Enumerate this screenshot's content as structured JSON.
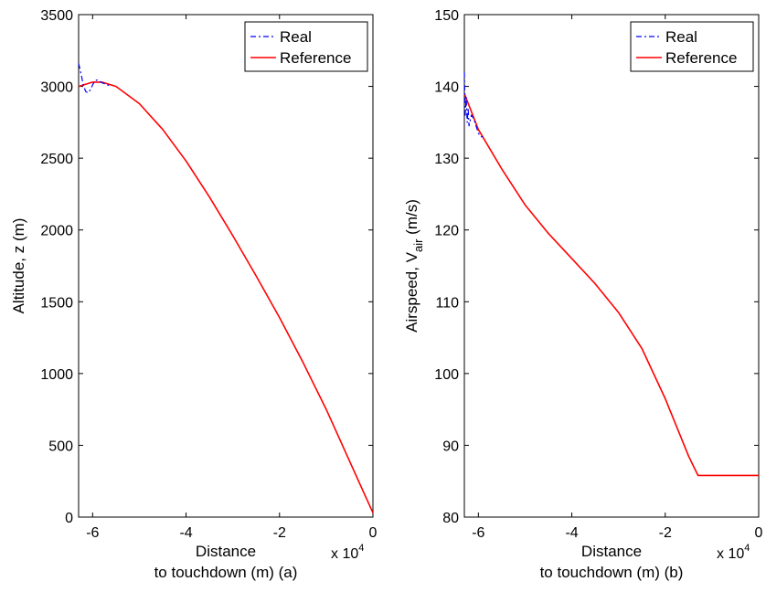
{
  "chart_data": [
    {
      "type": "line",
      "panel": "(a)",
      "xlabel_line1": "Distance",
      "xlabel_line2": "to touchdown (m) (a)",
      "ylabel": "Altitude, z (m)",
      "x_exponent_label": "x 10",
      "x_exponent_power": "4",
      "xlim": [
        -6.3,
        0
      ],
      "ylim": [
        0,
        3500
      ],
      "x_scale_note": "x values in units of 10^4 m",
      "xticks": [
        -6,
        -4,
        -2,
        0
      ],
      "xtick_labels": [
        "-6",
        "-4",
        "-2",
        "0"
      ],
      "yticks": [
        0,
        500,
        1000,
        1500,
        2000,
        2500,
        3000,
        3500
      ],
      "ytick_labels": [
        "0",
        "500",
        "1000",
        "1500",
        "2000",
        "2500",
        "3000",
        "3500"
      ],
      "legend_position": "top-right",
      "series": [
        {
          "name": "Real",
          "color": "#0000ff",
          "style": "dash-dot",
          "x": [
            -6.3,
            -6.25,
            -6.2,
            -6.15,
            -6.1,
            -6.05,
            -6.0,
            -5.95,
            -5.9,
            -5.8,
            -5.6
          ],
          "y": [
            3160,
            3090,
            3010,
            2965,
            2955,
            2975,
            3010,
            3040,
            3045,
            3025,
            3000
          ]
        },
        {
          "name": "Reference",
          "color": "#ff0000",
          "style": "solid",
          "x": [
            -6.3,
            -6.0,
            -5.8,
            -5.5,
            -5.0,
            -4.5,
            -4.0,
            -3.5,
            -3.0,
            -2.5,
            -2.0,
            -1.5,
            -1.0,
            -0.5,
            0.0
          ],
          "y": [
            3000,
            3030,
            3030,
            3000,
            2880,
            2700,
            2480,
            2230,
            1960,
            1680,
            1390,
            1080,
            750,
            390,
            30
          ]
        }
      ]
    },
    {
      "type": "line",
      "panel": "(b)",
      "xlabel_line1": "Distance",
      "xlabel_line2": "to touchdown (m) (b)",
      "ylabel_main": "Airspeed, V",
      "ylabel_sub": "air",
      "ylabel_unit": " (m/s)",
      "x_exponent_label": "x 10",
      "x_exponent_power": "4",
      "xlim": [
        -6.3,
        0
      ],
      "ylim": [
        80,
        150
      ],
      "x_scale_note": "x values in units of 10^4 m",
      "xticks": [
        -6,
        -4,
        -2,
        0
      ],
      "xtick_labels": [
        "-6",
        "-4",
        "-2",
        "0"
      ],
      "yticks": [
        80,
        90,
        100,
        110,
        120,
        130,
        140,
        150
      ],
      "ytick_labels": [
        "80",
        "90",
        "100",
        "110",
        "120",
        "130",
        "140",
        "150"
      ],
      "legend_position": "top-right",
      "series": [
        {
          "name": "Real",
          "color": "#0000ff",
          "style": "dash-dot",
          "x": [
            -6.3,
            -6.28,
            -6.26,
            -6.24,
            -6.22,
            -6.2,
            -6.15,
            -6.1,
            -6.05,
            -6.0,
            -5.95,
            -5.9
          ],
          "y": [
            142,
            136,
            138.5,
            135,
            137,
            134.5,
            136,
            135.5,
            134.5,
            133.5,
            133,
            133
          ]
        },
        {
          "name": "Reference",
          "color": "#ff0000",
          "style": "solid",
          "x": [
            -6.3,
            -6.0,
            -5.5,
            -5.0,
            -4.5,
            -4.0,
            -3.5,
            -3.0,
            -2.5,
            -2.0,
            -1.5,
            -1.3,
            -1.0,
            -0.5,
            0.0
          ],
          "y": [
            139,
            134,
            128.5,
            123.5,
            119.5,
            116,
            112.5,
            108.5,
            103.5,
            96.5,
            88.5,
            85.8,
            85.8,
            85.8,
            85.8
          ]
        }
      ]
    }
  ]
}
